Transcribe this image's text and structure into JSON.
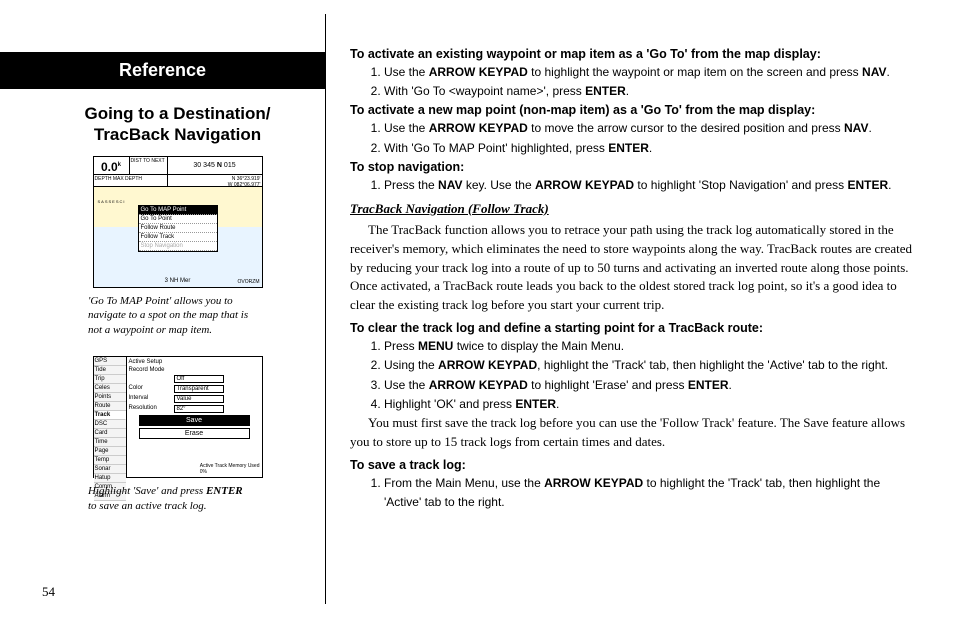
{
  "left": {
    "banner": "Reference",
    "subtitle_l1": "Going to a Destination/",
    "subtitle_l2": "TracBack Navigation",
    "screenshot1": {
      "speed": "0.0",
      "speed_unit": "k",
      "dist_label": "DIST TO NEXT",
      "hdg_left": "30",
      "hdg_mid": "345",
      "hdg_n": "N",
      "hdg_right": "015",
      "depth_label": "DEPTH MAX DEPTH",
      "pos": "N 36°23.919'",
      "pos2": "W 082°06.977'",
      "menu_items": [
        "Go To MAP Point",
        "Go To Point",
        "Follow Route",
        "Follow Track",
        "Stop Navigation"
      ],
      "menu_selected_index": 0,
      "menu_dim_index": 4,
      "scale": "3 NH Mer",
      "corner_label": "OVORZM",
      "map_flag": "SASSESCI",
      "caption_1": "'Go To MAP Point' allows you to",
      "caption_2": "navigate to a spot on the map that is",
      "caption_3": "not a waypoint or map item.",
      "colors": {
        "land": "#fff8d0",
        "water": "#e8f4ff"
      }
    },
    "screenshot2": {
      "tabs": [
        "GPS",
        "Tide",
        "Trip",
        "Celes",
        "Points",
        "Route",
        "Track",
        "DSC",
        "Card",
        "Time",
        "Page",
        "Temp",
        "Sonar",
        "Hatup",
        "Comm",
        "Alarm"
      ],
      "tab_selected": "Track",
      "fields": [
        {
          "lbl": "Active Setup",
          "val": ""
        },
        {
          "lbl": "Record Mode",
          "val": ""
        },
        {
          "lbl": "",
          "val": "Off"
        },
        {
          "lbl": "Color",
          "val": "Transparent"
        },
        {
          "lbl": "Interval",
          "val": "Value"
        },
        {
          "lbl": "Resolution",
          "val": "82°"
        }
      ],
      "buttons": [
        "Save",
        "Erase"
      ],
      "button_hi_index": 0,
      "footer": "Active Track Memory Used",
      "footer_val": "0%",
      "caption_1": "Highlight 'Save' and press ",
      "caption_bold": "ENTER",
      "caption_2": " to save an active track log."
    },
    "page_num": "54"
  },
  "right": {
    "h1": "To activate an existing waypoint or map item as a 'Go To' from the map display:",
    "l1": [
      {
        "pre": "Use the ",
        "b": "ARROW KEYPAD",
        "post": " to highlight the waypoint or map item on the screen and press ",
        "b2": "NAV",
        "post2": "."
      },
      {
        "pre": "With 'Go To <waypoint name>', press ",
        "b": "ENTER",
        "post": "."
      }
    ],
    "h2": "To activate a new map point (non-map item) as a 'Go To' from the map display:",
    "l2": [
      {
        "pre": "Use the ",
        "b": "ARROW KEYPAD",
        "post": " to move the arrow cursor to the desired position and press ",
        "b2": "NAV",
        "post2": "."
      },
      {
        "pre": "With 'Go To MAP Point' highlighted, press ",
        "b": "ENTER",
        "post": "."
      }
    ],
    "h3": "To stop navigation:",
    "l3": [
      {
        "pre": "Press the ",
        "b": "NAV",
        "post": " key. Use the ",
        "b2": "ARROW KEYPAD",
        "post2": " to highlight 'Stop Navigation' and press ",
        "b3": "ENTER",
        "post3": "."
      }
    ],
    "subhead": "TracBack Navigation (Follow Track)",
    "para1": "The TracBack function allows you to retrace your path using the track log automatically stored in the receiver's memory, which eliminates the need to store waypoints along the way. TracBack routes are created by reducing your track log into a route of up to 50 turns and activating an inverted route along those points. Once activated, a TracBack route leads you back to the oldest stored track log point, so it's a good idea to clear the existing track log before you start your current trip.",
    "h4": "To clear the track log and define a starting point for a TracBack route:",
    "l4": [
      {
        "pre": "Press ",
        "b": "MENU",
        "post": " twice to display the Main Menu."
      },
      {
        "pre": "Using the ",
        "b": "ARROW KEYPAD",
        "post": ", highlight the 'Track' tab, then highlight the 'Active' tab to the right."
      },
      {
        "pre": "Use the ",
        "b": "ARROW KEYPAD",
        "post": " to highlight 'Erase' and press ",
        "b2": "ENTER",
        "post2": "."
      },
      {
        "pre": "Highlight 'OK' and press ",
        "b": "ENTER",
        "post": "."
      }
    ],
    "para2": "You must first save the track log before you can use the 'Follow Track' feature. The Save feature allows you to store up to 15 track logs from certain times and dates.",
    "h5": "To save a track log:",
    "l5": [
      {
        "pre": "From the Main Menu, use the ",
        "b": "ARROW KEYPAD",
        "post": " to highlight the 'Track' tab, then highlight the 'Active' tab to the right."
      }
    ]
  }
}
